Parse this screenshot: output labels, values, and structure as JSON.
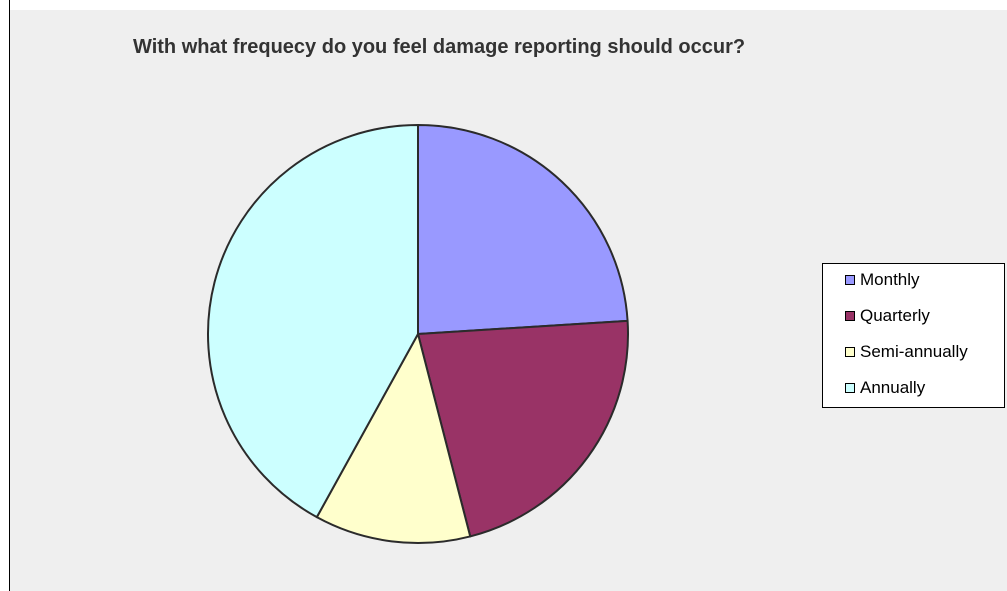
{
  "chart_data": {
    "type": "pie",
    "title": "With what frequecy do you feel damage reporting should occur?",
    "categories": [
      "Monthly",
      "Quarterly",
      "Semi-annually",
      "Annually"
    ],
    "values": [
      24,
      22,
      12,
      42
    ],
    "colors": [
      "#9999ff",
      "#993366",
      "#ffffcc",
      "#ccffff"
    ],
    "legend_position": "right"
  }
}
